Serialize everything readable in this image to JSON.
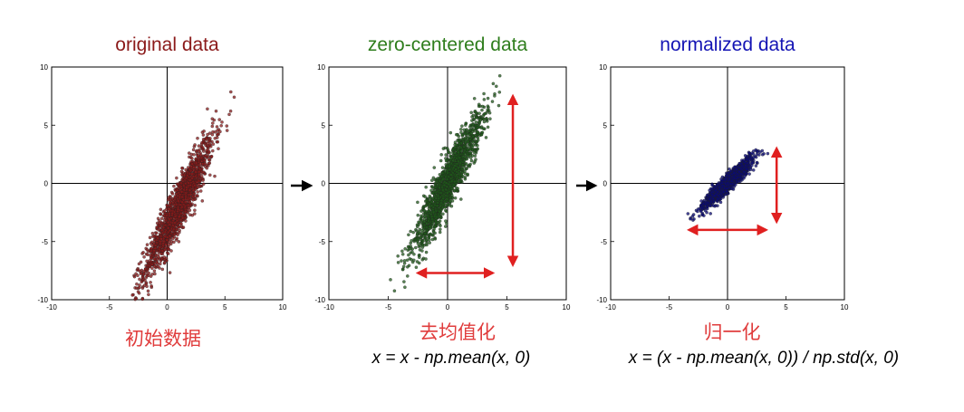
{
  "chart_data": [
    {
      "type": "scatter",
      "title": "original data",
      "title_color": "#8b1a1a",
      "point_color": "#8b1a1a",
      "xlim": [
        -10,
        10
      ],
      "ylim": [
        -10,
        10
      ],
      "xticks": [
        "-10",
        "-5",
        "0",
        "5",
        "10"
      ],
      "yticks": [
        "10",
        "5",
        "0",
        "-5",
        "-10"
      ],
      "axes_through_origin": true,
      "grid": false,
      "distribution": {
        "mean": [
          1.0,
          -2.0
        ],
        "std": [
          1.5,
          3.0
        ],
        "correlation": 0.93,
        "n": 1500
      },
      "arrows": []
    },
    {
      "type": "scatter",
      "title": "zero-centered data",
      "title_color": "#2e7d1c",
      "point_color": "#1f5a1a",
      "xlim": [
        -10,
        10
      ],
      "ylim": [
        -10,
        10
      ],
      "xticks": [
        "-10",
        "-5",
        "0",
        "5",
        "10"
      ],
      "yticks": [
        "10",
        "5",
        "0",
        "-5",
        "-10"
      ],
      "axes_through_origin": true,
      "grid": false,
      "distribution": {
        "mean": [
          0.0,
          0.0
        ],
        "std": [
          1.5,
          3.0
        ],
        "correlation": 0.93,
        "n": 1500
      },
      "arrows": [
        {
          "from": [
            5.5,
            7.5
          ],
          "to": [
            5.5,
            -7.0
          ],
          "color": "#e02020"
        },
        {
          "from": [
            -2.5,
            -7.7
          ],
          "to": [
            3.8,
            -7.7
          ],
          "color": "#e02020"
        }
      ]
    },
    {
      "type": "scatter",
      "title": "normalized data",
      "title_color": "#1414b4",
      "point_color": "#0a0a78",
      "xlim": [
        -10,
        10
      ],
      "ylim": [
        -10,
        10
      ],
      "xticks": [
        "-10",
        "-5",
        "0",
        "5",
        "10"
      ],
      "yticks": [
        "10",
        "5",
        "0",
        "-5",
        "-10"
      ],
      "axes_through_origin": true,
      "grid": false,
      "distribution": {
        "mean": [
          0.0,
          0.0
        ],
        "std": [
          1.0,
          1.0
        ],
        "correlation": 0.93,
        "n": 1500
      },
      "arrows": [
        {
          "from": [
            4.2,
            3.0
          ],
          "to": [
            4.2,
            -3.3
          ],
          "color": "#e02020"
        },
        {
          "from": [
            -3.3,
            -4.0
          ],
          "to": [
            3.3,
            -4.0
          ],
          "color": "#e02020"
        }
      ]
    }
  ],
  "captions": {
    "panel1": "初始数据",
    "panel2": "去均值化",
    "panel3": "归一化",
    "formula2": "x = x - np.mean(x, 0)",
    "formula3": "x = (x - np.mean(x, 0)) / np.std(x, 0)",
    "caption_color": "#e03c3c"
  },
  "connector_color": "#000000"
}
